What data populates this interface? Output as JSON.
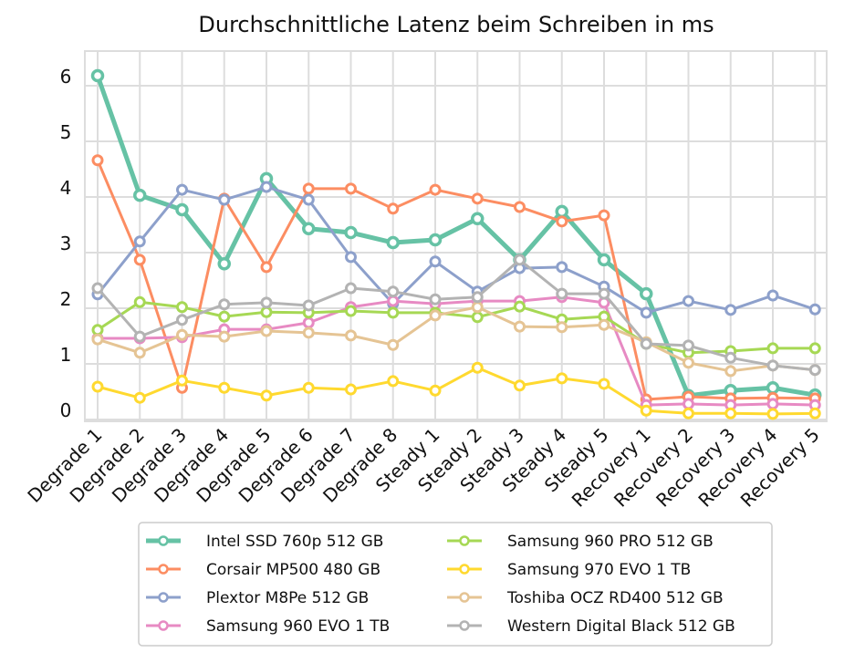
{
  "chart_data": {
    "type": "line",
    "title": "Durchschnittliche Latenz beim Schreiben in ms",
    "xlabel": "",
    "ylabel": "",
    "ylim": [
      0,
      6.5
    ],
    "yticks": [
      0,
      1,
      2,
      3,
      4,
      5,
      6
    ],
    "grid": true,
    "legend_position": "bottom-center",
    "categories": [
      "Degrade 1",
      "Degrade 2",
      "Degrade 3",
      "Degrade 4",
      "Degrade 5",
      "Degrade 6",
      "Degrade 7",
      "Degrade 8",
      "Steady 1",
      "Steady 2",
      "Steady 3",
      "Steady 4",
      "Steady 5",
      "Recovery 1",
      "Recovery 2",
      "Recovery 3",
      "Recovery 4",
      "Recovery 5"
    ],
    "series": [
      {
        "name": "Intel SSD 760p 512 GB",
        "color": "#66c2a5",
        "emphasis": true,
        "values": [
          6.18,
          4.03,
          3.77,
          2.8,
          4.33,
          3.43,
          3.36,
          3.18,
          3.23,
          3.61,
          2.87,
          3.74,
          2.87,
          2.26,
          0.43,
          0.52,
          0.57,
          0.44
        ]
      },
      {
        "name": "Corsair MP500 480 GB",
        "color": "#fc8d62",
        "values": [
          4.66,
          2.87,
          0.57,
          3.97,
          2.74,
          4.15,
          4.15,
          3.79,
          4.13,
          3.97,
          3.82,
          3.56,
          3.67,
          0.36,
          0.41,
          0.38,
          0.39,
          0.38
        ]
      },
      {
        "name": "Plextor M8Pe 512 GB",
        "color": "#8da0cb",
        "values": [
          2.25,
          3.2,
          4.13,
          3.95,
          4.18,
          3.95,
          2.92,
          2.08,
          2.84,
          2.3,
          2.72,
          2.74,
          2.39,
          1.92,
          2.13,
          1.97,
          2.23,
          1.98
        ]
      },
      {
        "name": "Samsung 960 EVO 1 TB",
        "color": "#e78ac3",
        "values": [
          1.46,
          1.46,
          1.48,
          1.62,
          1.62,
          1.74,
          2.02,
          2.13,
          2.08,
          2.13,
          2.13,
          2.2,
          2.1,
          0.26,
          0.28,
          0.26,
          0.28,
          0.26
        ]
      },
      {
        "name": "Samsung 960 PRO 512 GB",
        "color": "#a6d854",
        "values": [
          1.61,
          2.11,
          2.02,
          1.85,
          1.93,
          1.92,
          1.95,
          1.92,
          1.92,
          1.84,
          2.03,
          1.8,
          1.85,
          1.36,
          1.2,
          1.23,
          1.28,
          1.28
        ]
      },
      {
        "name": "Samsung 970 EVO 1 TB",
        "color": "#ffd92f",
        "values": [
          0.59,
          0.39,
          0.7,
          0.57,
          0.43,
          0.57,
          0.54,
          0.69,
          0.52,
          0.93,
          0.61,
          0.74,
          0.64,
          0.16,
          0.11,
          0.11,
          0.1,
          0.11
        ]
      },
      {
        "name": "Toshiba OCZ RD400 512 GB",
        "color": "#e5c494",
        "values": [
          1.44,
          1.2,
          1.52,
          1.49,
          1.59,
          1.56,
          1.51,
          1.34,
          1.87,
          2.02,
          1.67,
          1.66,
          1.7,
          1.39,
          1.02,
          0.87,
          0.97,
          0.89
        ]
      },
      {
        "name": "Western Digital Black 512 GB",
        "color": "#b3b3b3",
        "values": [
          2.36,
          1.49,
          1.79,
          2.07,
          2.1,
          2.05,
          2.36,
          2.3,
          2.16,
          2.2,
          2.87,
          2.26,
          2.26,
          1.36,
          1.33,
          1.11,
          0.97,
          0.89
        ]
      }
    ]
  }
}
